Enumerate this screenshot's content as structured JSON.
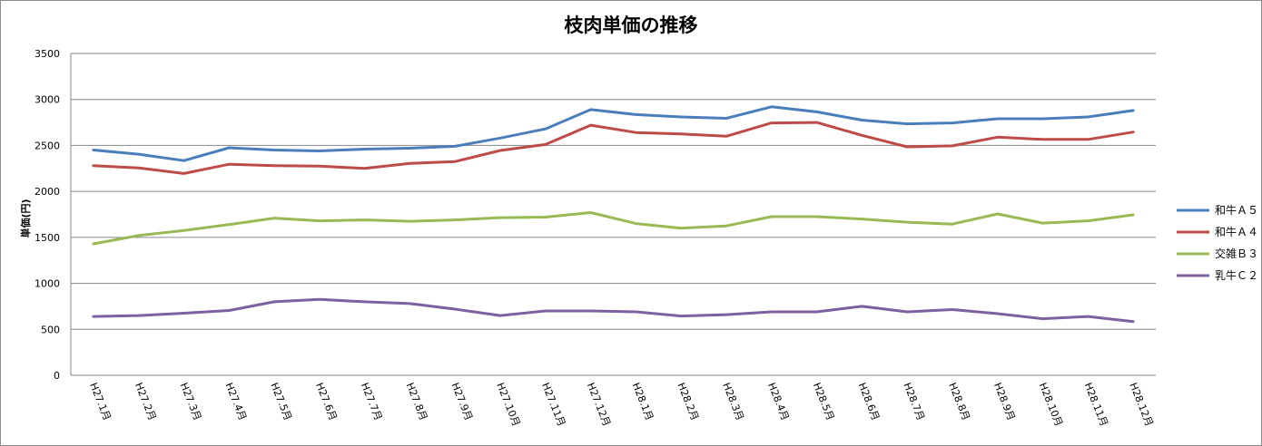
{
  "chart_data": {
    "type": "line",
    "title": "枝肉単価の推移",
    "ylabel": "単価(円)",
    "xlabel": "",
    "ylim": [
      0,
      3500
    ],
    "yticks": [
      "0",
      "500",
      "1000",
      "1500",
      "2000",
      "2500",
      "3000",
      "3500"
    ],
    "grid": true,
    "legend_position": "right",
    "categories": [
      "H27.1月",
      "H27.2月",
      "H27.3月",
      "H27.4月",
      "H27.5月",
      "H27.6月",
      "H27.7月",
      "H27.8月",
      "H27.9月",
      "H27.10月",
      "H27.11月",
      "H27.12月",
      "H28.1月",
      "H28.2月",
      "H28.3月",
      "H28.4月",
      "H28.5月",
      "H28.6月",
      "H28.7月",
      "H28.8月",
      "H28.9月",
      "H28.10月",
      "H28.11月",
      "H28.12月"
    ],
    "series": [
      {
        "name": "和牛Ａ５",
        "color": "#4a7ebb",
        "values": [
          2450,
          2405,
          2335,
          2475,
          2450,
          2440,
          2460,
          2470,
          2490,
          2580,
          2680,
          2890,
          2835,
          2810,
          2795,
          2920,
          2865,
          2775,
          2735,
          2745,
          2790,
          2790,
          2810,
          2880
        ]
      },
      {
        "name": "和牛Ａ４",
        "color": "#be4b48",
        "values": [
          2280,
          2255,
          2195,
          2295,
          2280,
          2275,
          2250,
          2305,
          2325,
          2445,
          2510,
          2720,
          2640,
          2625,
          2600,
          2745,
          2750,
          2610,
          2485,
          2495,
          2590,
          2565,
          2565,
          2645
        ]
      },
      {
        "name": "交雑Ｂ３",
        "color": "#98b954",
        "values": [
          1430,
          1520,
          1575,
          1640,
          1710,
          1680,
          1690,
          1675,
          1690,
          1715,
          1720,
          1770,
          1650,
          1600,
          1625,
          1725,
          1725,
          1700,
          1665,
          1645,
          1755,
          1655,
          1680,
          1745
        ]
      },
      {
        "name": "乳牛Ｃ２",
        "color": "#7d60a0",
        "values": [
          640,
          650,
          675,
          705,
          800,
          825,
          800,
          780,
          720,
          650,
          700,
          700,
          690,
          645,
          660,
          690,
          690,
          750,
          690,
          715,
          670,
          615,
          640,
          585
        ]
      }
    ]
  }
}
